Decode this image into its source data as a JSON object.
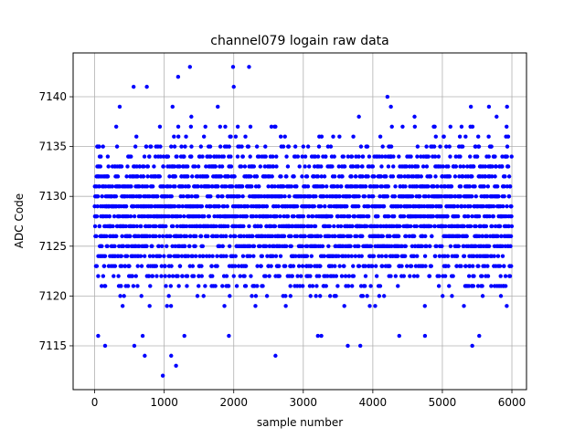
{
  "chart_data": {
    "type": "scatter",
    "title": "channel079 logain raw data",
    "xlabel": "sample number",
    "ylabel": "ADC Code",
    "xlim": [
      -310,
      6210
    ],
    "ylim": [
      7110.6,
      7144.4
    ],
    "xticks": [
      0,
      1000,
      2000,
      3000,
      4000,
      5000,
      6000
    ],
    "yticks": [
      7115,
      7120,
      7125,
      7130,
      7135,
      7140
    ],
    "grid": true,
    "marker_color": "#0000ff",
    "n_samples": 6000,
    "series": [
      {
        "values_description_levels": [
          7119,
          7120,
          7121,
          7122,
          7123,
          7124,
          7125,
          7126,
          7127,
          7128,
          7129,
          7130,
          7131,
          7132,
          7133,
          7134,
          7135,
          7136,
          7137
        ],
        "level_weights": [
          1,
          2,
          4,
          6,
          8,
          10,
          13,
          15,
          16,
          17,
          17,
          16,
          14,
          11,
          9,
          6,
          4,
          2,
          1
        ],
        "outliers": [
          [
            980,
            7112
          ],
          [
            1170,
            7113
          ],
          [
            1100,
            7114
          ],
          [
            2600,
            7114
          ],
          [
            720,
            7114
          ],
          [
            150,
            7115
          ],
          [
            570,
            7115
          ],
          [
            3640,
            7115
          ],
          [
            3820,
            7115
          ],
          [
            5430,
            7115
          ],
          [
            50,
            7116
          ],
          [
            690,
            7116
          ],
          [
            1290,
            7116
          ],
          [
            1930,
            7116
          ],
          [
            3210,
            7116
          ],
          [
            3260,
            7116
          ],
          [
            4380,
            7116
          ],
          [
            4750,
            7116
          ],
          [
            5530,
            7116
          ],
          [
            560,
            7141
          ],
          [
            750,
            7141
          ],
          [
            2000,
            7141
          ],
          [
            1120,
            7139
          ],
          [
            1770,
            7139
          ],
          [
            5410,
            7139
          ],
          [
            5670,
            7139
          ],
          [
            5930,
            7139
          ],
          [
            4210,
            7140
          ],
          [
            4260,
            7139
          ],
          [
            1200,
            7142
          ],
          [
            1370,
            7143
          ],
          [
            1990,
            7143
          ],
          [
            2220,
            7143
          ],
          [
            1390,
            7138
          ],
          [
            3800,
            7138
          ],
          [
            4600,
            7138
          ],
          [
            5780,
            7138
          ],
          [
            360,
            7139
          ]
        ]
      }
    ]
  }
}
